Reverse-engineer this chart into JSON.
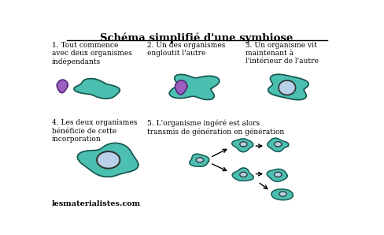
{
  "title": "Schéma simplifié d'une symbiose",
  "bg_color": "#ffffff",
  "teal_fill": "#4bbfb0",
  "teal_edge": "#1a5550",
  "purple_fill": "#9b5fc0",
  "purple_edge": "#4a2070",
  "light_blue_fill": "#b8d0e8",
  "light_blue_edge": "#303030",
  "label1": "1. Tout commence\navec deux organismes\nindépendants",
  "label2": "2. Un des organismes\nengloutit l'autre",
  "label3": "3. Un organisme vit\nmaintenant à\nl'intérieur de l'autre",
  "label4": "4. Les deux organismes\nbénéficie de cette\nincorporation",
  "label5": "5. L'organisme ingéré est alors\ntransmis de génération en génération",
  "watermark": "lesmaterialistes.com",
  "font": "DejaVu Serif"
}
